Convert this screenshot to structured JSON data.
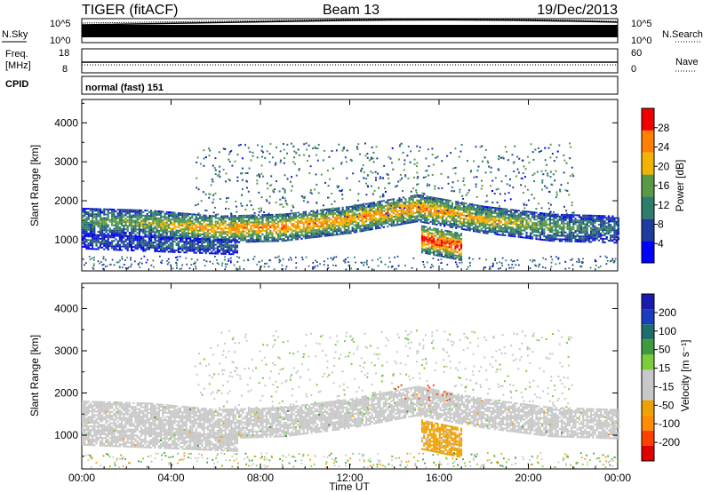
{
  "header": {
    "radar": "TIGER (fitACF)",
    "beam": "Beam 13",
    "date": "19/Dec/2013"
  },
  "top_panels": {
    "nsky_label": "N.Sky",
    "nsearch_label": "N.Search",
    "nsky_top": "10^5",
    "nsky_bottom": "10^0",
    "freq_label": "Freq.",
    "freq_unit": "[MHz]",
    "freq_ticks": [
      "18",
      "8"
    ],
    "nave_ticks": [
      "60",
      "0"
    ],
    "nave_label": "Nave",
    "cpid_label": "CPID",
    "cpid_value": "normal (fast) 151"
  },
  "colors": {
    "power_scale": [
      "#0000ff",
      "#1e3c9b",
      "#2e7c6a",
      "#5a9a46",
      "#f2b400",
      "#ff7f00",
      "#f00000"
    ],
    "velocity_scale": [
      "#e00000",
      "#ff4000",
      "#ff8c00",
      "#f0a000",
      "#c8c8c8",
      "#c8c8c8",
      "#7ccc3c",
      "#3e9a3e",
      "#1e6e6e",
      "#1a3cbf",
      "#1a1ab0"
    ]
  },
  "chart_data": [
    {
      "type": "heatmap",
      "name": "power",
      "xlabel": "",
      "ylabel": "Slant Range [km]",
      "x_ticks": [
        "00:00",
        "04:00",
        "08:00",
        "12:00",
        "16:00",
        "20:00",
        "00:00"
      ],
      "xlim": [
        0,
        24
      ],
      "y_ticks": [
        1000,
        2000,
        3000,
        4000
      ],
      "ylim": [
        200,
        4600
      ],
      "colorbar": {
        "label": "Power [dB]",
        "ticks": [
          4,
          8,
          12,
          16,
          20,
          24,
          28
        ],
        "range": [
          0,
          32
        ]
      },
      "echo_bands": [
        {
          "hour_start": 0.0,
          "hour_end": 24.0,
          "range_center_km": [
            1450,
            1400,
            1250,
            1300,
            1500,
            1800,
            1500,
            1300,
            1250
          ],
          "width_km": 350,
          "power_db": [
            14,
            18,
            24,
            26,
            24,
            26,
            22,
            16,
            10
          ]
        },
        {
          "hour_start": 0.0,
          "hour_end": 7.0,
          "range_center_km": [
            950,
            900,
            850,
            800
          ],
          "width_km": 200,
          "power_db": [
            8,
            9,
            10,
            10
          ]
        },
        {
          "hour_start": 15.2,
          "hour_end": 17.0,
          "range_center_km": [
            1000,
            800
          ],
          "width_km": 350,
          "power_db": [
            30,
            30
          ]
        }
      ]
    },
    {
      "type": "heatmap",
      "name": "velocity",
      "xlabel": "Time UT",
      "ylabel": "Slant Range [km]",
      "x_ticks": [
        "00:00",
        "04:00",
        "08:00",
        "12:00",
        "16:00",
        "20:00",
        "00:00"
      ],
      "xlim": [
        0,
        24
      ],
      "y_ticks": [
        1000,
        2000,
        3000,
        4000
      ],
      "ylim": [
        200,
        4600
      ],
      "colorbar": {
        "label": "Velocity [m s⁻¹]",
        "ticks": [
          200,
          100,
          50,
          15,
          -15,
          -50,
          -100,
          -200
        ],
        "range": [
          -250,
          250
        ]
      }
    }
  ]
}
